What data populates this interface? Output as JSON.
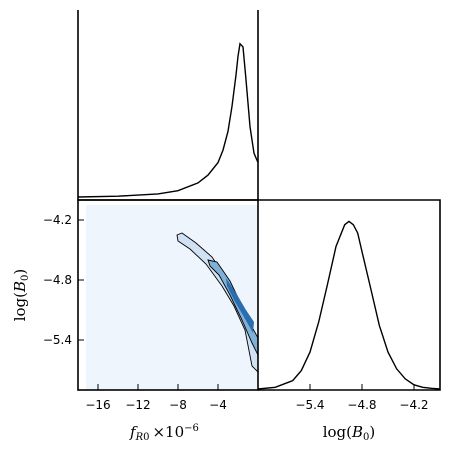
{
  "chart_data": [
    {
      "type": "line",
      "panel": "top-left",
      "description_x": "f_R0 x 10^-6",
      "xlim": [
        -18,
        0
      ],
      "ylim": [
        0,
        1.1
      ],
      "x": [
        -18,
        -14,
        -10,
        -8,
        -6,
        -5,
        -4,
        -3.5,
        -3,
        -2.6,
        -2.2,
        -2.0,
        -1.8,
        -1.5,
        -1.2,
        -0.8,
        -0.4,
        0
      ],
      "y": [
        0,
        0.005,
        0.02,
        0.04,
        0.09,
        0.14,
        0.22,
        0.3,
        0.42,
        0.58,
        0.78,
        0.9,
        0.98,
        0.96,
        0.75,
        0.45,
        0.28,
        0.22
      ]
    },
    {
      "type": "heatmap",
      "panel": "bottom-left",
      "xlabel": "$f_{R0}\\times10^{-6}$",
      "ylabel": "$\\log(B_0)$",
      "xlim": [
        -18,
        0
      ],
      "ylim": [
        -5.9,
        -4.0
      ],
      "xticks": [
        "−16",
        "−12",
        "−8",
        "−4"
      ],
      "yticks": [
        "−4.2",
        "−4.8",
        "−5.4"
      ],
      "xtick_values": [
        -16,
        -12,
        -8,
        -4
      ],
      "ytick_values": [
        -4.2,
        -4.8,
        -5.4
      ],
      "background_region": {
        "x0": -17.2,
        "x1": 0,
        "y0": -4.05,
        "y1": -5.9
      },
      "outer_contour": [
        [
          -8.1,
          -4.35
        ],
        [
          -7.6,
          -4.33
        ],
        [
          -6.2,
          -4.43
        ],
        [
          -4.6,
          -4.57
        ],
        [
          -3.2,
          -4.78
        ],
        [
          -2.0,
          -5.02
        ],
        [
          -0.9,
          -5.28
        ],
        [
          0,
          -5.45
        ],
        [
          0,
          -5.72
        ],
        [
          -0.6,
          -5.66
        ],
        [
          -1.3,
          -5.3
        ],
        [
          -2.4,
          -5.06
        ],
        [
          -3.6,
          -4.86
        ],
        [
          -5.2,
          -4.64
        ],
        [
          -6.8,
          -4.49
        ],
        [
          -8.0,
          -4.41
        ]
      ],
      "inner_contour": [
        [
          -5.0,
          -4.6
        ],
        [
          -4.1,
          -4.62
        ],
        [
          -2.8,
          -4.81
        ],
        [
          -1.7,
          -5.04
        ],
        [
          -0.7,
          -5.25
        ],
        [
          0,
          -5.38
        ],
        [
          0,
          -5.55
        ],
        [
          -0.6,
          -5.43
        ],
        [
          -1.6,
          -5.2
        ],
        [
          -2.8,
          -4.95
        ],
        [
          -3.9,
          -4.75
        ],
        [
          -4.8,
          -4.66
        ]
      ],
      "core_contour": [
        [
          -3.2,
          -4.78
        ],
        [
          -2.2,
          -4.93
        ],
        [
          -1.2,
          -5.1
        ],
        [
          -0.4,
          -5.22
        ],
        [
          -0.5,
          -5.33
        ],
        [
          -1.4,
          -5.17
        ],
        [
          -2.4,
          -5.0
        ],
        [
          -3.1,
          -4.86
        ]
      ],
      "colors": {
        "background": "#eef5fd",
        "outer": "#cfe1f2",
        "inner": "#7fb0d6",
        "core": "#2a6eb0"
      }
    },
    {
      "type": "line",
      "panel": "bottom-right",
      "xlabel": "$\\log(B_0)$",
      "xlim": [
        -6.0,
        -3.9
      ],
      "ylim": [
        0,
        1.05
      ],
      "xticks": [
        "−5.4",
        "−4.8",
        "−4.2"
      ],
      "xtick_values": [
        -5.4,
        -4.8,
        -4.2
      ],
      "x": [
        -6.0,
        -5.8,
        -5.6,
        -5.5,
        -5.4,
        -5.3,
        -5.2,
        -5.1,
        -5.0,
        -4.95,
        -4.9,
        -4.85,
        -4.8,
        -4.7,
        -4.6,
        -4.5,
        -4.4,
        -4.3,
        -4.2,
        -4.1,
        -4.0,
        -3.9
      ],
      "y": [
        0,
        0.01,
        0.05,
        0.11,
        0.22,
        0.4,
        0.62,
        0.85,
        0.98,
        1.0,
        0.98,
        0.93,
        0.82,
        0.6,
        0.38,
        0.22,
        0.12,
        0.06,
        0.025,
        0.01,
        0.004,
        0
      ]
    }
  ]
}
